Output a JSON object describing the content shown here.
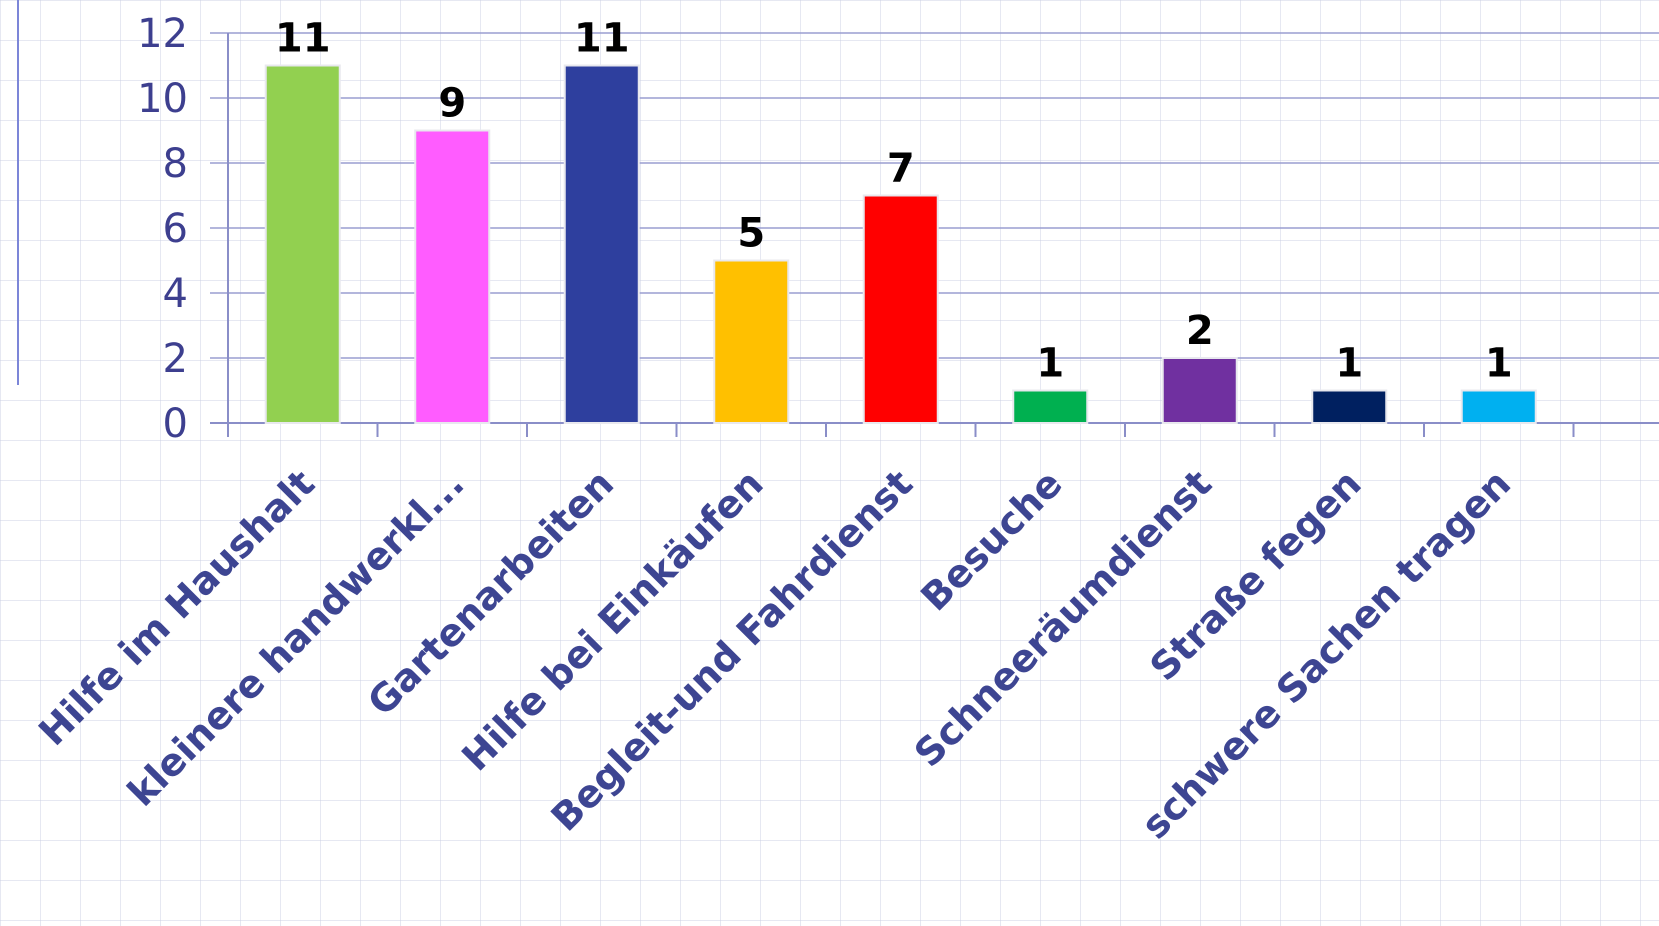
{
  "chart_data": {
    "type": "bar",
    "categories": [
      "Hilfe im Haushalt",
      "kleinere handwerkl...",
      "Gartenarbeiten",
      "Hilfe bei Einkäufen",
      "Begleit-und Fahrdienst",
      "Besuche",
      "Schneeräumdienst",
      "Straße fegen",
      "schwere Sachen tragen"
    ],
    "values": [
      11,
      9,
      11,
      5,
      7,
      1,
      2,
      1,
      1
    ],
    "data_labels": [
      "11",
      "9",
      "11",
      "5",
      "7",
      "1",
      "2",
      "1",
      "1"
    ],
    "colors": [
      "#92d050",
      "#ff5cff",
      "#2e3f9e",
      "#ffc000",
      "#ff0000",
      "#00b050",
      "#7030a0",
      "#002060",
      "#00b0f0"
    ],
    "ylim": [
      0,
      12
    ],
    "yticks": [
      0,
      2,
      4,
      6,
      8,
      10,
      12
    ],
    "grid": true,
    "title": "",
    "xlabel": "",
    "ylabel": ""
  }
}
